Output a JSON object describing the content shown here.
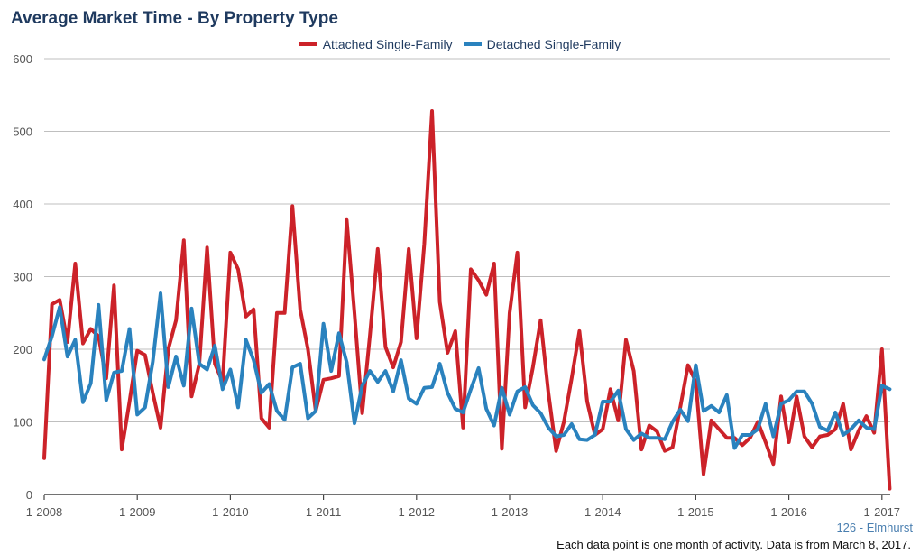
{
  "title": "Average Market Time - By Property Type",
  "region_label": "126 - Elmhurst",
  "footnote": "Each data point is one month of activity. Data is from March 8, 2017.",
  "chart_data": {
    "type": "line",
    "title": "Average Market Time - By Property Type",
    "xlabel": "",
    "ylabel": "",
    "ylim": [
      0,
      600
    ],
    "yticks": [
      0,
      100,
      200,
      300,
      400,
      500,
      600
    ],
    "x_start": "2008-01",
    "x_step": "month",
    "x_tick_labels": [
      "1-2008",
      "1-2009",
      "1-2010",
      "1-2011",
      "1-2012",
      "1-2013",
      "1-2014",
      "1-2015",
      "1-2016",
      "1-2017"
    ],
    "grid": true,
    "legend_position": "top-center",
    "series": [
      {
        "name": "Attached Single-Family",
        "color": "#cc2229",
        "values": [
          50,
          262,
          268,
          210,
          318,
          208,
          228,
          218,
          160,
          288,
          62,
          128,
          198,
          192,
          140,
          92,
          200,
          240,
          350,
          135,
          180,
          340,
          180,
          155,
          333,
          310,
          245,
          255,
          105,
          92,
          250,
          250,
          397,
          255,
          200,
          115,
          158,
          160,
          163,
          378,
          250,
          112,
          220,
          338,
          203,
          175,
          210,
          338,
          215,
          345,
          528,
          265,
          195,
          225,
          92,
          310,
          295,
          275,
          318,
          63,
          250,
          333,
          120,
          175,
          240,
          140,
          60,
          100,
          160,
          225,
          128,
          82,
          90,
          145,
          102,
          213,
          170,
          62,
          95,
          87,
          60,
          65,
          120,
          178,
          155,
          28,
          102,
          90,
          78,
          78,
          68,
          78,
          100,
          72,
          42,
          135,
          72,
          135,
          80,
          65,
          80,
          82,
          90,
          125,
          62,
          88,
          108,
          85,
          200,
          8
        ]
      },
      {
        "name": "Detached Single-Family",
        "color": "#2a82be",
        "values": [
          186,
          218,
          258,
          190,
          213,
          127,
          153,
          261,
          130,
          168,
          170,
          228,
          110,
          120,
          183,
          277,
          148,
          190,
          150,
          256,
          180,
          172,
          205,
          145,
          172,
          120,
          213,
          185,
          140,
          152,
          115,
          103,
          175,
          180,
          105,
          115,
          235,
          170,
          222,
          182,
          98,
          150,
          170,
          155,
          170,
          142,
          185,
          132,
          125,
          147,
          148,
          180,
          140,
          118,
          113,
          145,
          174,
          118,
          95,
          147,
          110,
          142,
          148,
          123,
          112,
          92,
          80,
          82,
          97,
          76,
          75,
          82,
          128,
          128,
          143,
          90,
          75,
          84,
          78,
          78,
          76,
          100,
          117,
          101,
          178,
          115,
          122,
          113,
          137,
          64,
          82,
          82,
          90,
          125,
          80,
          125,
          130,
          142,
          142,
          125,
          93,
          88,
          113,
          82,
          90,
          102,
          92,
          90,
          150,
          145
        ]
      }
    ]
  }
}
